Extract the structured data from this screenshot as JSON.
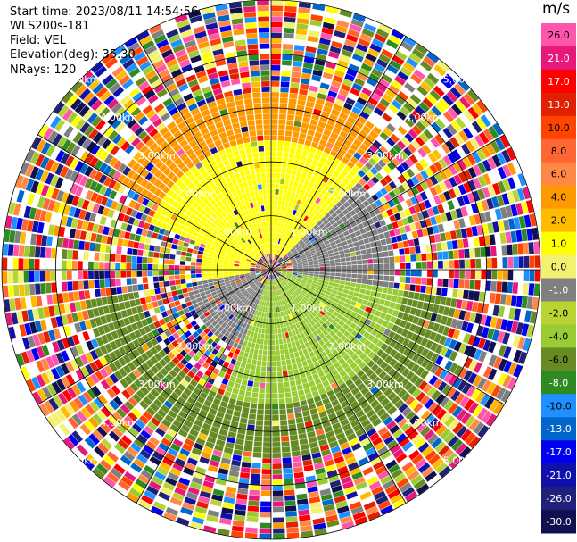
{
  "header": {
    "start_time": "Start time: 2023/08/11 14:54:56",
    "instrument": "WLS200s-181",
    "field": "Field: VEL",
    "elevation": "Elevation(deg): 35.30",
    "nrays": "NRays: 120"
  },
  "chart_data": {
    "type": "heatmap",
    "projection": "polar",
    "field": "VEL",
    "units": "m/s",
    "nrays": 120,
    "range_rings_km": [
      1,
      2,
      3,
      4,
      5
    ],
    "ring_labels": [
      "1.00km",
      "2.00km",
      "3.00km",
      "4.00km",
      "5.00km"
    ],
    "max_range_km": 5.0,
    "radial_lines_deg": [
      0,
      30,
      60,
      90,
      120,
      150,
      180,
      210,
      240,
      270,
      300,
      330
    ],
    "colorbar": {
      "title": "m/s",
      "ticks": [
        "26.0",
        "21.0",
        "17.0",
        "13.0",
        "10.0",
        "8.0",
        "6.0",
        "4.0",
        "2.0",
        "1.0",
        "0.0",
        "-1.0",
        "-2.0",
        "-4.0",
        "-6.0",
        "-8.0",
        "-10.0",
        "-13.0",
        "-17.0",
        "-21.0",
        "-26.0",
        "-30.0"
      ],
      "colors": [
        "#ff55aa",
        "#e8177a",
        "#ff0000",
        "#e02000",
        "#ff4400",
        "#ff6633",
        "#ff8844",
        "#ff9900",
        "#ffbb00",
        "#ffff00",
        "#f4f070",
        "#808080",
        "#b8d433",
        "#99cc33",
        "#668b22",
        "#2e8b22",
        "#1e90ff",
        "#0066cc",
        "#0000ee",
        "#1010aa",
        "#20207a",
        "#101050"
      ]
    },
    "velocity_zones": [
      {
        "from_deg": 290,
        "to_deg": 45,
        "inner_km": 0.3,
        "outer_km": 2.4,
        "color": "#ffff00"
      },
      {
        "from_deg": 300,
        "to_deg": 40,
        "inner_km": 2.4,
        "outer_km": 3.3,
        "color": "#ff9900"
      },
      {
        "from_deg": 45,
        "to_deg": 100,
        "inner_km": 0.4,
        "outer_km": 2.3,
        "color": "#808080"
      },
      {
        "from_deg": 100,
        "to_deg": 200,
        "inner_km": 0.2,
        "outer_km": 2.5,
        "color": "#99cc33"
      },
      {
        "from_deg": 200,
        "to_deg": 260,
        "inner_km": 0.3,
        "outer_km": 1.6,
        "color": "#808080"
      },
      {
        "from_deg": 260,
        "to_deg": 290,
        "inner_km": 0.4,
        "outer_km": 1.3,
        "color": "#ffff00"
      },
      {
        "from_deg": 100,
        "to_deg": 260,
        "inner_km": 2.5,
        "outer_km": 3.5,
        "color": "#668b22"
      }
    ]
  }
}
